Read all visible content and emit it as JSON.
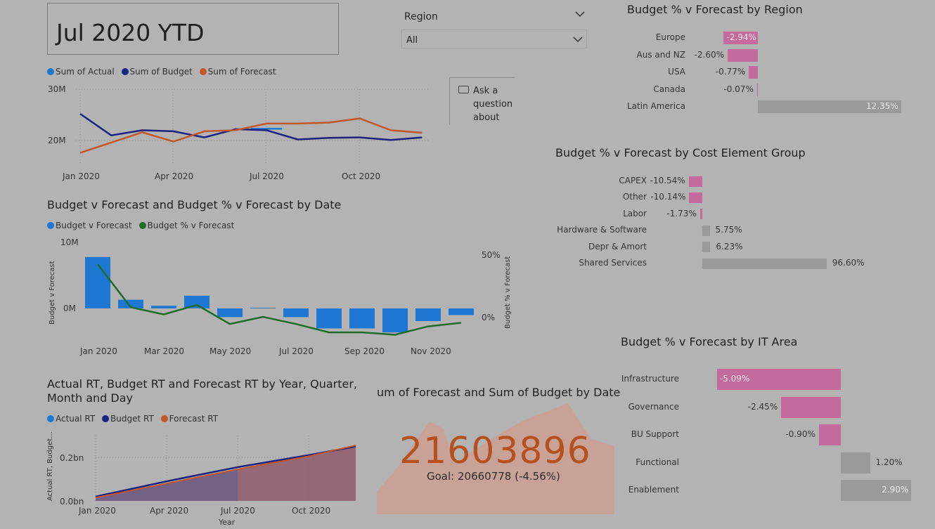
{
  "title_card": {
    "text": "Jul 2020 YTD"
  },
  "region_slicer": {
    "label": "Region",
    "selected": "All"
  },
  "qa_button": {
    "lines": [
      "Ask a",
      "question",
      "about"
    ]
  },
  "colors": {
    "actual": "#1f77d4",
    "budget": "#1a237e",
    "forecast": "#c0582b",
    "pct_line": "#1e6b2a",
    "neg_bar": "#c46a9c",
    "pos_bar": "#9a9a9a"
  },
  "sum_chart": {
    "legend": [
      "Sum of Actual",
      "Sum of Budget",
      "Sum of Forecast"
    ],
    "y_ticks": [
      "30M",
      "20M"
    ],
    "x_ticks": [
      "Jan 2020",
      "Apr 2020",
      "Jul 2020",
      "Oct 2020"
    ]
  },
  "bvf_chart": {
    "title": "Budget v Forecast and Budget % v Forecast by Date",
    "legend": [
      "Budget v Forecast",
      "Budget % v Forecast"
    ],
    "y_left_ticks": [
      "10M",
      "0M"
    ],
    "y_right_ticks": [
      "50%",
      "0%"
    ],
    "y_left_label": "Budget v Forecast",
    "y_right_label": "Budget % v Forecast",
    "x_ticks": [
      "Jan 2020",
      "Mar 2020",
      "May 2020",
      "Jul 2020",
      "Sep 2020",
      "Nov 2020"
    ]
  },
  "rt_chart": {
    "title_line1": "Actual RT, Budget RT and Forecast RT by Year, Quarter,",
    "title_line2": "Month and Day",
    "legend": [
      "Actual RT",
      "Budget RT",
      "Forecast RT"
    ],
    "y_ticks": [
      "0.2bn",
      "0.0bn"
    ],
    "y_label": "Actual RT, Budget...",
    "x_ticks": [
      "Jan 2020",
      "Apr 2020",
      "Jul 2020",
      "Oct 2020"
    ],
    "x_label": "Year"
  },
  "kpi": {
    "title": "um of Forecast and Sum of Budget by Date",
    "value": "21603896",
    "goal": "Goal: 20660778 (-4.56%)"
  },
  "region_bars": {
    "title": "Budget % v Forecast by Region",
    "items": [
      {
        "label": "Europe",
        "value_text": "-2.94%",
        "value": -2.94
      },
      {
        "label": "Aus and NZ",
        "value_text": "-2.60%",
        "value": -2.6
      },
      {
        "label": "USA",
        "value_text": "-0.77%",
        "value": -0.77
      },
      {
        "label": "Canada",
        "value_text": "-0.07%",
        "value": -0.07
      },
      {
        "label": "Latin America",
        "value_text": "12.35%",
        "value": 12.35
      }
    ]
  },
  "ceg_bars": {
    "title": "Budget % v Forecast by Cost Element Group",
    "items": [
      {
        "label": "CAPEX",
        "value_text": "-10.54%",
        "value": -10.54
      },
      {
        "label": "Other",
        "value_text": "-10.14%",
        "value": -10.14
      },
      {
        "label": "Labor",
        "value_text": "-1.73%",
        "value": -1.73
      },
      {
        "label": "Hardware & Software",
        "value_text": "5.75%",
        "value": 5.75
      },
      {
        "label": "Depr & Amort",
        "value_text": "6.23%",
        "value": 6.23
      },
      {
        "label": "Shared Services",
        "value_text": "96.60%",
        "value": 96.6
      }
    ]
  },
  "it_bars": {
    "title": "Budget % v Forecast by IT Area",
    "items": [
      {
        "label": "Infrastructure",
        "value_text": "-5.09%",
        "value": -5.09
      },
      {
        "label": "Governance",
        "value_text": "-2.45%",
        "value": -2.45
      },
      {
        "label": "BU Support",
        "value_text": "-0.90%",
        "value": -0.9
      },
      {
        "label": "Functional",
        "value_text": "1.20%",
        "value": 1.2
      },
      {
        "label": "Enablement",
        "value_text": "2.90%",
        "value": 2.9
      }
    ]
  },
  "chart_data": [
    {
      "type": "line",
      "x": [
        "Jan 2020",
        "Feb 2020",
        "Mar 2020",
        "Apr 2020",
        "May 2020",
        "Jun 2020",
        "Jul 2020",
        "Aug 2020",
        "Sep 2020",
        "Oct 2020",
        "Nov 2020",
        "Dec 2020"
      ],
      "series": [
        {
          "name": "Sum of Actual",
          "values": [
            null,
            null,
            null,
            null,
            null,
            null,
            22.3,
            null,
            null,
            null,
            null,
            null
          ]
        },
        {
          "name": "Sum of Budget",
          "values": [
            25.2,
            21.0,
            22.0,
            21.8,
            20.6,
            22.2,
            22.0,
            20.2,
            20.5,
            20.6,
            20.1,
            20.6
          ]
        },
        {
          "name": "Sum of Forecast",
          "values": [
            17.6,
            19.6,
            21.6,
            19.8,
            21.8,
            22.0,
            23.3,
            23.3,
            23.5,
            24.3,
            22.0,
            21.5
          ]
        }
      ],
      "ylim": [
        17,
        30
      ],
      "y_unit": "M"
    },
    {
      "type": "bar",
      "categories": [
        "Jan 2020",
        "Feb 2020",
        "Mar 2020",
        "Apr 2020",
        "May 2020",
        "Jun 2020",
        "Jul 2020",
        "Aug 2020",
        "Sep 2020",
        "Oct 2020",
        "Nov 2020",
        "Dec 2020"
      ],
      "series": [
        {
          "name": "Budget v Forecast",
          "values": [
            7.7,
            1.3,
            0.4,
            1.9,
            -1.3,
            0.1,
            -1.3,
            -3.0,
            -3.0,
            -3.6,
            -1.9,
            -1.0
          ]
        },
        {
          "name": "Budget % v Forecast",
          "values": [
            44,
            8,
            2,
            10,
            -6,
            0,
            -6,
            -13,
            -13,
            -15,
            -8,
            -5
          ]
        }
      ],
      "y_unit": "M"
    },
    {
      "type": "area",
      "x": [
        "Jan 2020",
        "Apr 2020",
        "Jul 2020",
        "Oct 2020",
        "Dec 2020"
      ],
      "series": [
        {
          "name": "Actual RT",
          "values": [
            0.01,
            0.07,
            0.14,
            null,
            null
          ]
        },
        {
          "name": "Budget RT",
          "values": [
            0.02,
            0.09,
            0.155,
            0.21,
            0.25
          ]
        },
        {
          "name": "Forecast RT",
          "values": [
            0.015,
            0.08,
            0.145,
            0.205,
            0.255
          ]
        }
      ],
      "y_unit": "bn"
    }
  ]
}
